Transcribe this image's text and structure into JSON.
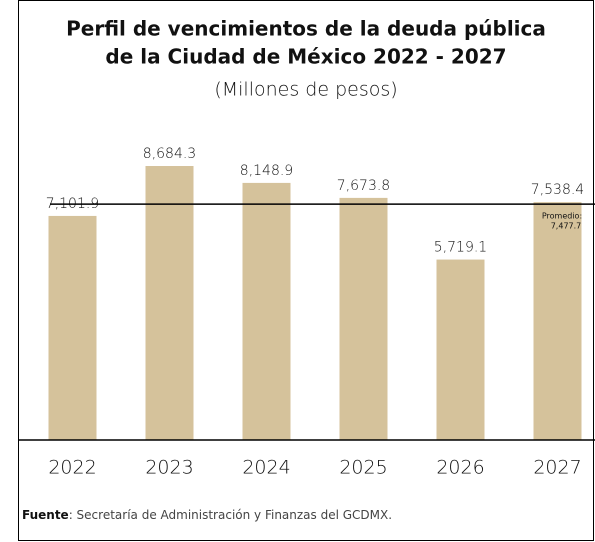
{
  "chart_data": {
    "type": "bar",
    "title": [
      "Perfil de vencimientos de la deuda pública",
      "de la Ciudad de México 2022 - 2027"
    ],
    "subtitle": "(Millones de pesos)",
    "categories": [
      "2022",
      "2023",
      "2024",
      "2025",
      "2026",
      "2027"
    ],
    "values": [
      7101.9,
      8684.3,
      8148.9,
      7673.8,
      5719.1,
      7538.4
    ],
    "value_labels": [
      "7,101.9",
      "8,684.3",
      "8,148.9",
      "7,673.8",
      "5,719.1",
      "7,538.4"
    ],
    "color": "#d5c29b",
    "ylim": [
      0,
      10000
    ],
    "average": {
      "label": "Promedio:",
      "value": 7477.7,
      "value_label": "7,477.7"
    },
    "source": {
      "label": "Fuente",
      "text": ": Secretaría de Administración y Finanzas del GCDMX."
    }
  }
}
